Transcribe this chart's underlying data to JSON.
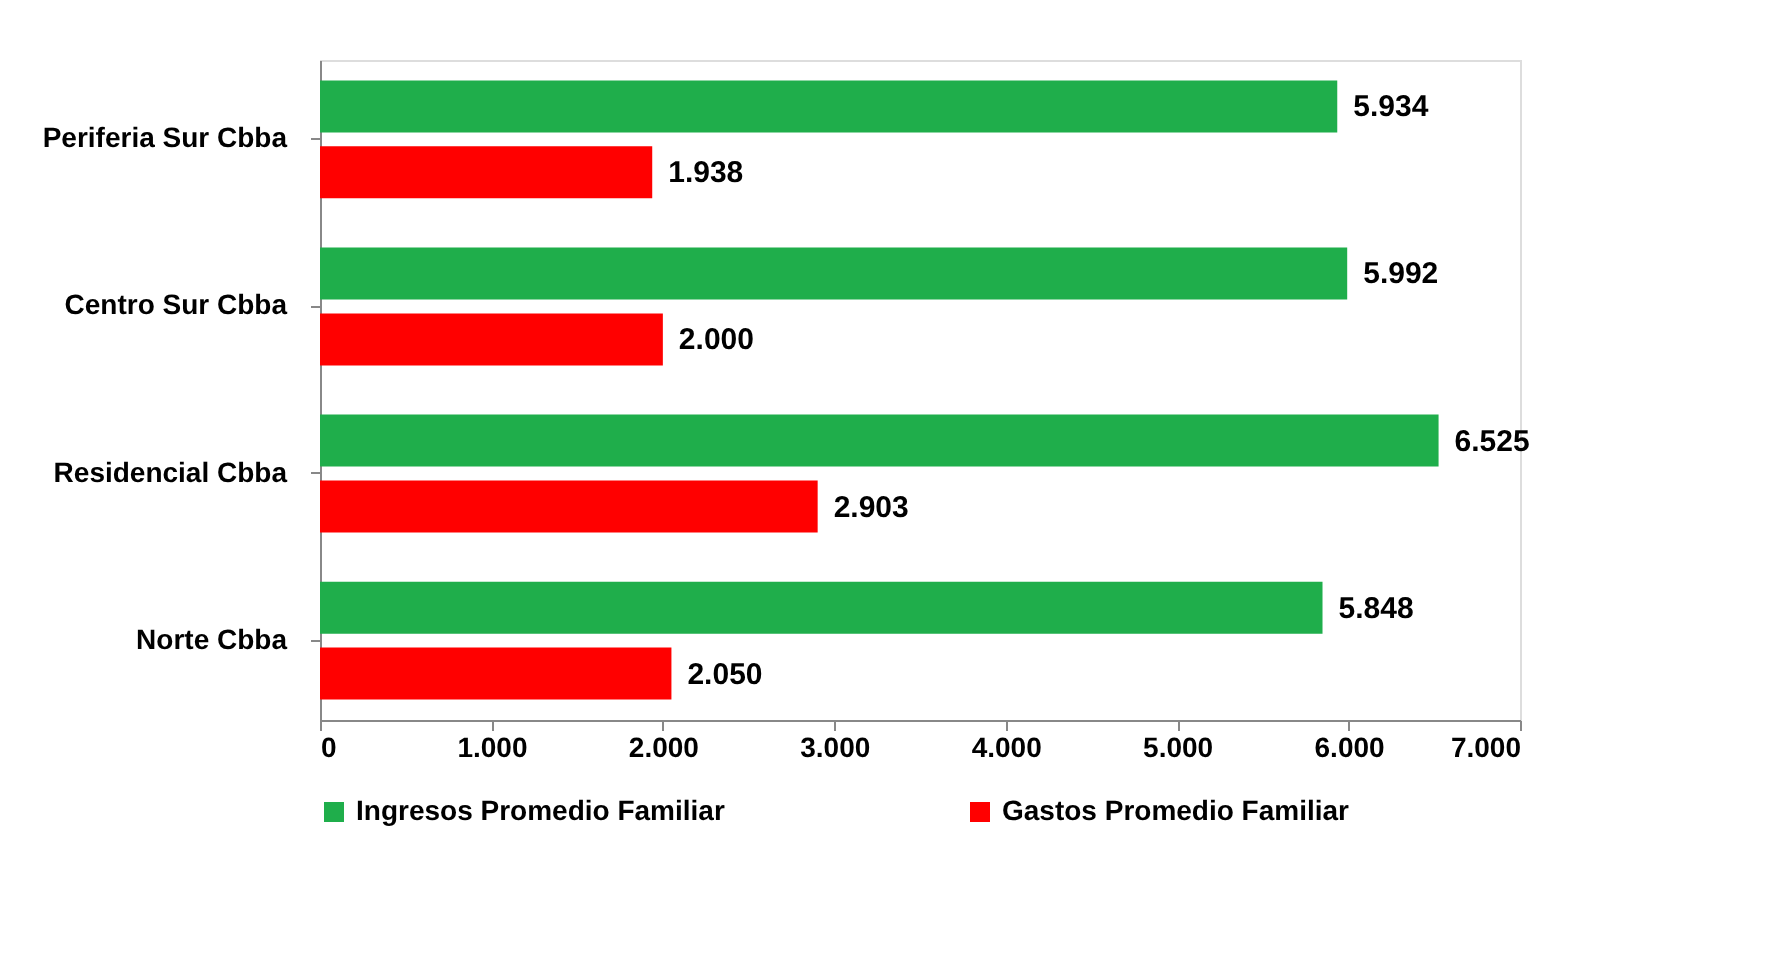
{
  "chart_data": {
    "type": "bar",
    "orientation": "horizontal",
    "categories": [
      "Periferia Sur Cbba",
      "Centro Sur Cbba",
      "Residencial Cbba",
      "Norte Cbba"
    ],
    "series": [
      {
        "name": "Ingresos Promedio Familiar",
        "color": "#1fae4b",
        "values": [
          5934,
          5992,
          6525,
          5848
        ],
        "value_labels": [
          "5.934",
          "5.992",
          "6.525",
          "5.848"
        ]
      },
      {
        "name": "Gastos Promedio Familiar",
        "color": "#ff0000",
        "values": [
          1938,
          2000,
          2903,
          2050
        ],
        "value_labels": [
          "1.938",
          "2.000",
          "2.903",
          "2.050"
        ]
      }
    ],
    "xlim": [
      0,
      7000
    ],
    "xticks": [
      0,
      {
        "value": 1000,
        "label": "1.000"
      },
      {
        "value": 2000,
        "label": "2.000"
      },
      {
        "value": 3000,
        "label": "3.000"
      },
      {
        "value": 4000,
        "label": "4.000"
      },
      {
        "value": 5000,
        "label": "5.000"
      },
      {
        "value": 6000,
        "label": "6.000"
      },
      {
        "value": 7000,
        "label": "7.000"
      }
    ],
    "grid": false,
    "legend": "bottom"
  }
}
